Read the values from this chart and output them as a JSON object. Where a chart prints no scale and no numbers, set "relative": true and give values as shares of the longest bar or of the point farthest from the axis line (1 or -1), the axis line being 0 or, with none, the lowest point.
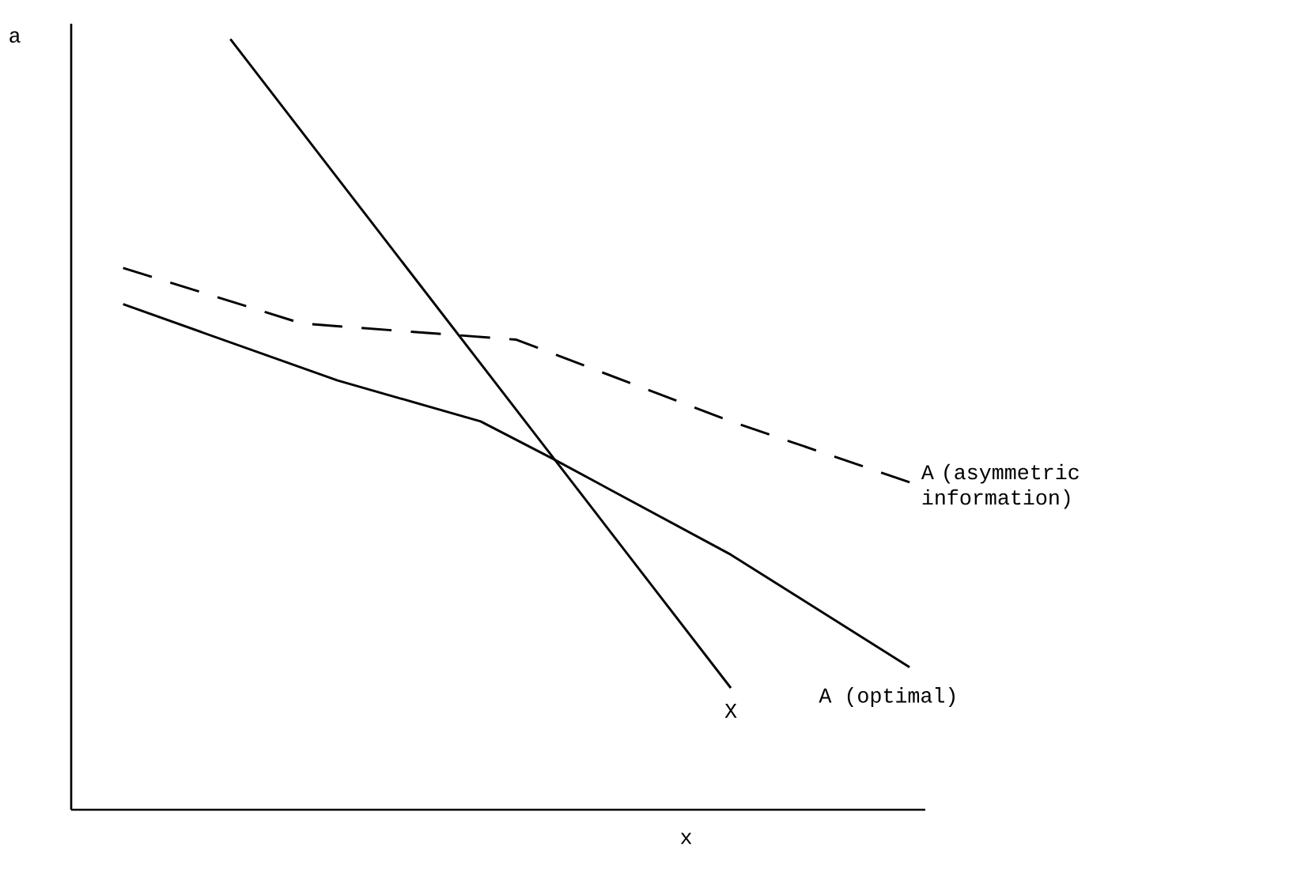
{
  "chart_data": {
    "type": "line",
    "relative": true,
    "xlabel": "x",
    "ylabel": "a",
    "marker": "none",
    "categories": [
      null,
      null,
      null,
      null,
      null,
      null,
      null,
      null,
      null,
      null,
      null,
      null,
      null,
      null,
      null,
      null,
      null,
      null,
      null,
      null,
      null,
      null,
      null
    ],
    "series": [
      {
        "name": "X",
        "color": "#000000",
        "values": [
          null,
          null,
          null,
          1,
          null,
          null,
          null,
          null,
          null,
          null,
          null,
          null,
          null,
          null,
          null,
          null,
          null,
          0.158,
          null,
          null,
          null,
          null,
          null
        ]
      },
      {
        "name": "A (asymmetric information)",
        "color": "#000000",
        "line_style": "dashed",
        "values": [
          0.703,
          null,
          null,
          null,
          null,
          0.631,
          null,
          null,
          null,
          null,
          null,
          0.61,
          null,
          null,
          null,
          null,
          null,
          0.504,
          null,
          null,
          null,
          null,
          0.425
        ]
      },
      {
        "name": "A (optimal)",
        "color": "#000000",
        "values": [
          0.656,
          null,
          null,
          null,
          null,
          null,
          0.557,
          null,
          null,
          null,
          0.504,
          null,
          0.456,
          null,
          null,
          null,
          null,
          0.331,
          null,
          null,
          null,
          null,
          0.185
        ]
      }
    ]
  }
}
